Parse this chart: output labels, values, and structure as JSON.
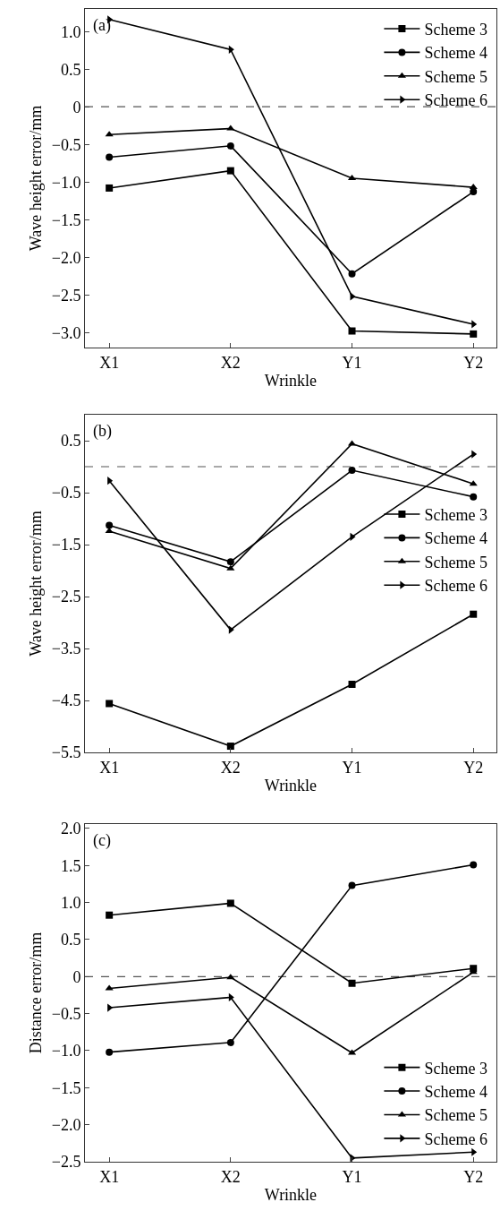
{
  "chart_data": [
    {
      "type": "line",
      "xlabel": "Wrinkle",
      "ylabel": "Wave height error/mm",
      "annotations": [
        "(a)"
      ],
      "categories": [
        "X1",
        "X2",
        "Y1",
        "Y2"
      ],
      "ylim": [
        -3.2,
        1.3
      ],
      "yticks": [
        {
          "value": -3.0,
          "label": "−3.0"
        },
        {
          "value": -2.5,
          "label": "−2.5"
        },
        {
          "value": -2.0,
          "label": "−2.0"
        },
        {
          "value": -1.5,
          "label": "−1.5"
        },
        {
          "value": -1.0,
          "label": "−1.0"
        },
        {
          "value": -0.5,
          "label": "−0.5"
        },
        0,
        0.5,
        {
          "value": 1.0,
          "label": "1.0"
        }
      ],
      "legend": "top right",
      "grid": false,
      "line_style": "solid",
      "ref_lines": [
        {
          "axis": "y",
          "value": 0,
          "color": "#555555",
          "line_style": "dashed"
        }
      ],
      "series": [
        {
          "name": "Scheme 3",
          "color": "#000000",
          "marker": "square",
          "values": [
            -1.08,
            -0.85,
            -2.98,
            -3.02
          ]
        },
        {
          "name": "Scheme 4",
          "color": "#000000",
          "marker": "circle",
          "values": [
            -0.67,
            -0.52,
            -2.22,
            -1.13
          ]
        },
        {
          "name": "Scheme 5",
          "color": "#000000",
          "marker": "triangle",
          "values": [
            -0.37,
            -0.29,
            -0.95,
            -1.07
          ]
        },
        {
          "name": "Scheme 6",
          "color": "#000000",
          "marker": "triangle-right",
          "values": [
            1.16,
            0.76,
            -2.52,
            -2.89
          ]
        }
      ]
    },
    {
      "type": "line",
      "xlabel": "Wrinkle",
      "ylabel": "Wave height error/mm",
      "annotations": [
        "(b)"
      ],
      "categories": [
        "X1",
        "X2",
        "Y1",
        "Y2"
      ],
      "ylim": [
        -5.5,
        1.0
      ],
      "yticks": [
        {
          "value": -5.5,
          "label": "−5.5"
        },
        {
          "value": -4.5,
          "label": "−4.5"
        },
        {
          "value": -3.5,
          "label": "−3.5"
        },
        {
          "value": -2.5,
          "label": "−2.5"
        },
        {
          "value": -1.5,
          "label": "−1.5"
        },
        {
          "value": -0.5,
          "label": "−0.5"
        },
        0.5
      ],
      "legend": "right",
      "grid": false,
      "line_style": "solid",
      "ref_lines": [
        {
          "axis": "y",
          "value": 0,
          "color": "#555555",
          "line_style": "dashed"
        }
      ],
      "series": [
        {
          "name": "Scheme 3",
          "color": "#000000",
          "marker": "square",
          "values": [
            -4.56,
            -5.38,
            -4.19,
            -2.84
          ]
        },
        {
          "name": "Scheme 4",
          "color": "#000000",
          "marker": "circle",
          "values": [
            -1.13,
            -1.83,
            -0.07,
            -0.58
          ]
        },
        {
          "name": "Scheme 5",
          "color": "#000000",
          "marker": "triangle",
          "values": [
            -1.24,
            -1.96,
            0.44,
            -0.33
          ]
        },
        {
          "name": "Scheme 6",
          "color": "#000000",
          "marker": "triangle-right",
          "values": [
            -0.27,
            -3.14,
            -1.35,
            0.24
          ]
        }
      ]
    },
    {
      "type": "line",
      "xlabel": "Wrinkle",
      "ylabel": "Distance error/mm",
      "annotations": [
        "(c)"
      ],
      "categories": [
        "X1",
        "X2",
        "Y1",
        "Y2"
      ],
      "ylim": [
        -2.5,
        2.06
      ],
      "yticks": [
        {
          "value": -2.5,
          "label": "−2.5"
        },
        {
          "value": -2.0,
          "label": "−2.0"
        },
        {
          "value": -1.5,
          "label": "−1.5"
        },
        {
          "value": -1.0,
          "label": "−1.0"
        },
        {
          "value": -0.5,
          "label": "−0.5"
        },
        0,
        0.5,
        {
          "value": 1.0,
          "label": "1.0"
        },
        1.5,
        {
          "value": 2.0,
          "label": "2.0"
        }
      ],
      "legend": "bottom right",
      "grid": false,
      "line_style": "solid",
      "ref_lines": [
        {
          "axis": "y",
          "value": 0,
          "color": "#555555",
          "line_style": "dashed"
        }
      ],
      "series": [
        {
          "name": "Scheme 3",
          "color": "#000000",
          "marker": "square",
          "values": [
            0.83,
            0.99,
            -0.09,
            0.11
          ]
        },
        {
          "name": "Scheme 4",
          "color": "#000000",
          "marker": "circle",
          "values": [
            -1.02,
            -0.89,
            1.23,
            1.51
          ]
        },
        {
          "name": "Scheme 5",
          "color": "#000000",
          "marker": "triangle",
          "values": [
            -0.16,
            -0.01,
            -1.03,
            0.06
          ]
        },
        {
          "name": "Scheme 6",
          "color": "#000000",
          "marker": "triangle-right",
          "values": [
            -0.42,
            -0.28,
            -2.45,
            -2.37
          ]
        }
      ]
    }
  ]
}
